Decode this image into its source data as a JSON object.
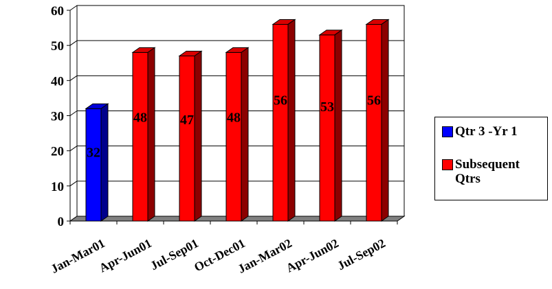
{
  "chart_data": {
    "type": "bar",
    "categories": [
      "Jan-Mar01",
      "Apr-Jun01",
      "Jul-Sep01",
      "Oct-Dec01",
      "Jan-Mar02",
      "Apr-Jun02",
      "Jul-Sep02"
    ],
    "series": [
      {
        "name": "Qtr 3 -Yr 1",
        "color": "#0000ff",
        "values": [
          32,
          null,
          null,
          null,
          null,
          null,
          null
        ]
      },
      {
        "name": "Subsequent Qtrs",
        "color": "#ff0000",
        "values": [
          null,
          48,
          47,
          48,
          56,
          53,
          56
        ]
      }
    ],
    "data_labels": [
      "32",
      "",
      "48",
      "47",
      "48",
      "56",
      "53",
      "56"
    ],
    "bar_values_shown": [
      32,
      48,
      47,
      48,
      56,
      53,
      56
    ],
    "y_ticks": [
      "0",
      "10",
      "20",
      "30",
      "40",
      "50",
      "60"
    ],
    "ylim": [
      0,
      60
    ],
    "title": "",
    "xlabel": "",
    "ylabel": "",
    "grid": true,
    "style": "3d-column",
    "legend_position": "right"
  },
  "legend": {
    "items": [
      {
        "label": "Qtr 3 -Yr 1",
        "color": "#0000ff"
      },
      {
        "label": "Subsequent Qtrs",
        "color": "#ff0000"
      }
    ]
  }
}
